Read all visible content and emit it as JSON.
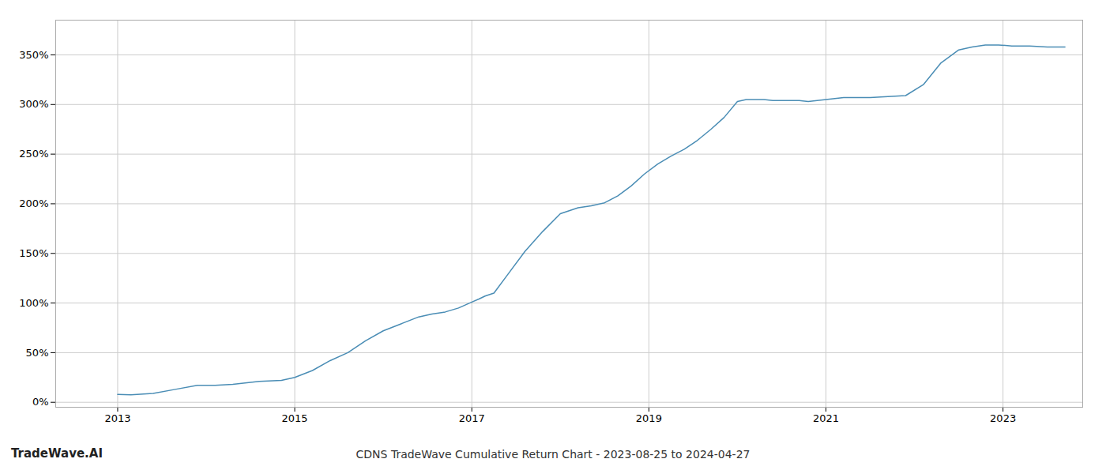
{
  "chart_data": {
    "type": "line",
    "title": "CDNS TradeWave Cumulative Return Chart - 2023-08-25 to 2024-04-27",
    "annotations": [
      "TradeWave.AI"
    ],
    "x": [
      2013.0,
      2013.15,
      2013.4,
      2013.65,
      2013.9,
      2014.1,
      2014.3,
      2014.6,
      2014.85,
      2015.0,
      2015.2,
      2015.4,
      2015.6,
      2015.8,
      2016.0,
      2016.2,
      2016.4,
      2016.55,
      2016.7,
      2016.85,
      2017.0,
      2017.08,
      2017.15,
      2017.25,
      2017.4,
      2017.6,
      2017.8,
      2018.0,
      2018.2,
      2018.35,
      2018.5,
      2018.65,
      2018.8,
      2018.95,
      2019.1,
      2019.25,
      2019.4,
      2019.55,
      2019.7,
      2019.85,
      2020.0,
      2020.1,
      2020.2,
      2020.3,
      2020.4,
      2020.5,
      2020.6,
      2020.7,
      2020.8,
      2020.9,
      2021.0,
      2021.1,
      2021.2,
      2021.35,
      2021.5,
      2021.7,
      2021.9,
      2022.1,
      2022.3,
      2022.5,
      2022.65,
      2022.8,
      2022.95,
      2023.1,
      2023.3,
      2023.5,
      2023.7
    ],
    "values": [
      0.08,
      0.075,
      0.09,
      0.13,
      0.17,
      0.17,
      0.18,
      0.21,
      0.22,
      0.25,
      0.32,
      0.42,
      0.5,
      0.62,
      0.72,
      0.79,
      0.86,
      0.89,
      0.91,
      0.95,
      1.01,
      1.04,
      1.07,
      1.1,
      1.28,
      1.52,
      1.72,
      1.9,
      1.96,
      1.98,
      2.01,
      2.08,
      2.18,
      2.3,
      2.4,
      2.48,
      2.55,
      2.64,
      2.75,
      2.87,
      3.03,
      3.05,
      3.05,
      3.05,
      3.04,
      3.04,
      3.04,
      3.04,
      3.03,
      3.04,
      3.05,
      3.06,
      3.07,
      3.07,
      3.07,
      3.08,
      3.09,
      3.2,
      3.42,
      3.55,
      3.58,
      3.6,
      3.6,
      3.59,
      3.59,
      3.58,
      3.58
    ],
    "color": "#4a8db5",
    "xlim": [
      2012.3,
      2023.9
    ],
    "xticks": [
      2013,
      2015,
      2017,
      2019,
      2021,
      2023
    ],
    "ylim": [
      -0.05,
      3.85
    ],
    "yticks": [
      {
        "value": 0.0,
        "label": "0%"
      },
      {
        "value": 0.5,
        "label": "50%"
      },
      {
        "value": 1.0,
        "label": "100%"
      },
      {
        "value": 1.5,
        "label": "150%"
      },
      {
        "value": 2.0,
        "label": "200%"
      },
      {
        "value": 2.5,
        "label": "250%"
      },
      {
        "value": 3.0,
        "label": "300%"
      },
      {
        "value": 3.5,
        "label": "350%"
      }
    ],
    "grid": true
  }
}
